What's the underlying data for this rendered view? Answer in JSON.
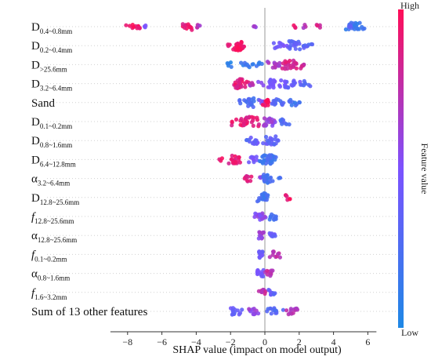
{
  "chart_data": {
    "type": "scatter",
    "subtype": "shap-beeswarm",
    "title": "",
    "xlabel": "SHAP value (impact on model output)",
    "xlim": [
      -9,
      6.5
    ],
    "xticks": [
      -8,
      -6,
      -4,
      -2,
      0,
      2,
      4,
      6
    ],
    "colorbar": {
      "label": "Feature value",
      "high": "High",
      "low": "Low",
      "color_low": "#1e88e5",
      "color_high": "#ff0d57"
    },
    "features": [
      {
        "base": "D",
        "sub": "0.4~0.8mm"
      },
      {
        "base": "D",
        "sub": "0.2~0.4mm"
      },
      {
        "base": "D",
        "sub": ">25.6mm"
      },
      {
        "base": "D",
        "sub": "3.2~6.4mm"
      },
      {
        "base": "Sand",
        "sub": ""
      },
      {
        "base": "D",
        "sub": "0.1~0.2mm"
      },
      {
        "base": "D",
        "sub": "0.8~1.6mm"
      },
      {
        "base": "D",
        "sub": "6.4~12.8mm"
      },
      {
        "base": "α",
        "sub": "3.2~6.4mm"
      },
      {
        "base": "D",
        "sub": "12.8~25.6mm"
      },
      {
        "base": "f",
        "sub": "12.8~25.6mm",
        "italic": true
      },
      {
        "base": "α",
        "sub": "12.8~25.6mm"
      },
      {
        "base": "f",
        "sub": "0.1~0.2mm",
        "italic": true
      },
      {
        "base": "α",
        "sub": "0.8~1.6mm"
      },
      {
        "base": "f",
        "sub": "1.6~3.2mm",
        "italic": true
      },
      {
        "base": "Sum of 13 other features",
        "sub": ""
      }
    ],
    "series": [
      {
        "clusters": [
          [
            -7.6,
            0.6,
            0.95,
            12
          ],
          [
            -7.0,
            0.15,
            0.5,
            3
          ],
          [
            -4.5,
            0.5,
            0.9,
            12
          ],
          [
            -3.9,
            0.2,
            0.7,
            5
          ],
          [
            -0.6,
            0.1,
            0.6,
            4
          ],
          [
            1.7,
            0.1,
            0.9,
            3
          ],
          [
            2.3,
            0.1,
            0.7,
            3
          ],
          [
            3.1,
            0.2,
            0.85,
            4
          ],
          [
            5.3,
            0.5,
            0.15,
            18
          ],
          [
            5.0,
            0.2,
            0.3,
            6
          ]
        ]
      },
      {
        "clusters": [
          [
            -1.5,
            0.35,
            0.95,
            34
          ],
          [
            -2.1,
            0.1,
            0.9,
            3
          ],
          [
            0.7,
            0.5,
            0.45,
            10
          ],
          [
            1.9,
            0.7,
            0.35,
            22
          ],
          [
            2.5,
            0.25,
            0.3,
            6
          ]
        ]
      },
      {
        "clusters": [
          [
            -2.0,
            0.25,
            0.1,
            5
          ],
          [
            -1.1,
            0.5,
            0.15,
            10
          ],
          [
            -0.3,
            0.3,
            0.1,
            4
          ],
          [
            0.6,
            0.5,
            0.7,
            14
          ],
          [
            1.5,
            0.6,
            0.85,
            22
          ],
          [
            2.2,
            0.2,
            0.8,
            5
          ]
        ]
      },
      {
        "clusters": [
          [
            -1.4,
            0.45,
            0.9,
            26
          ],
          [
            -0.8,
            0.2,
            0.7,
            5
          ],
          [
            0.4,
            0.6,
            0.5,
            18
          ],
          [
            1.4,
            0.7,
            0.4,
            22
          ],
          [
            2.4,
            0.4,
            0.3,
            8
          ]
        ]
      },
      {
        "clusters": [
          [
            -1.0,
            0.6,
            0.25,
            22
          ],
          [
            -0.2,
            0.3,
            0.5,
            6
          ],
          [
            0.15,
            0.25,
            0.95,
            12
          ],
          [
            0.8,
            0.5,
            0.3,
            14
          ],
          [
            1.7,
            0.4,
            0.2,
            10
          ]
        ]
      },
      {
        "clusters": [
          [
            -1.1,
            0.8,
            0.9,
            30
          ],
          [
            0.2,
            0.4,
            0.6,
            20
          ],
          [
            1.0,
            0.4,
            0.25,
            10
          ]
        ]
      },
      {
        "clusters": [
          [
            -0.6,
            0.3,
            0.4,
            14
          ],
          [
            0.3,
            0.6,
            0.35,
            20
          ],
          [
            -1.0,
            0.15,
            0.25,
            3
          ]
        ]
      },
      {
        "clusters": [
          [
            -1.8,
            0.45,
            0.9,
            18
          ],
          [
            -2.6,
            0.15,
            0.95,
            3
          ],
          [
            -0.7,
            0.3,
            0.5,
            10
          ],
          [
            0.2,
            0.55,
            0.2,
            36
          ]
        ]
      },
      {
        "clusters": [
          [
            -1.0,
            0.3,
            0.85,
            10
          ],
          [
            -0.3,
            0.15,
            0.6,
            3
          ],
          [
            0.2,
            0.35,
            0.2,
            20
          ],
          [
            0.9,
            0.1,
            0.2,
            3
          ]
        ]
      },
      {
        "clusters": [
          [
            -0.1,
            0.3,
            0.2,
            24
          ],
          [
            1.3,
            0.15,
            0.95,
            6
          ]
        ]
      },
      {
        "clusters": [
          [
            -0.3,
            0.3,
            0.55,
            18
          ],
          [
            0.5,
            0.3,
            0.2,
            12
          ]
        ]
      },
      {
        "clusters": [
          [
            -0.2,
            0.2,
            0.6,
            14
          ],
          [
            0.4,
            0.3,
            0.4,
            10
          ]
        ]
      },
      {
        "clusters": [
          [
            -0.2,
            0.15,
            0.4,
            14
          ],
          [
            0.6,
            0.25,
            0.75,
            10
          ]
        ]
      },
      {
        "clusters": [
          [
            -0.3,
            0.2,
            0.45,
            14
          ],
          [
            0.2,
            0.25,
            0.75,
            10
          ]
        ]
      },
      {
        "clusters": [
          [
            -0.1,
            0.2,
            0.75,
            10
          ],
          [
            0.4,
            0.25,
            0.35,
            10
          ]
        ]
      },
      {
        "clusters": [
          [
            -1.7,
            0.4,
            0.4,
            14
          ],
          [
            -0.6,
            0.35,
            0.6,
            12
          ],
          [
            0.5,
            0.5,
            0.3,
            14
          ],
          [
            1.6,
            0.4,
            0.7,
            12
          ]
        ]
      }
    ]
  }
}
